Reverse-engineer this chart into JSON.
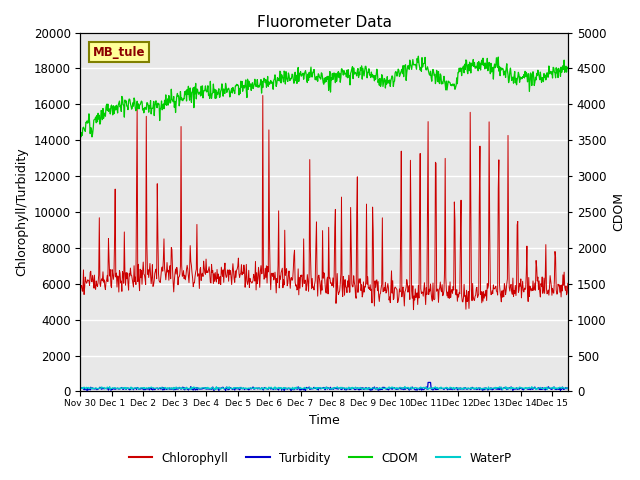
{
  "title": "Fluorometer Data",
  "xlabel": "Time",
  "ylabel_left": "Chlorophyll/Turbidity",
  "ylabel_right": "CDOM",
  "xlim_days": [
    0,
    15.5
  ],
  "ylim_left": [
    0,
    20000
  ],
  "ylim_right": [
    0,
    5000
  ],
  "xtick_labels": [
    "Nov 30",
    "Dec 1",
    "Dec 2",
    "Dec 3",
    "Dec 4",
    "Dec 5",
    "Dec 6",
    "Dec 7",
    "Dec 8",
    "Dec 9",
    "Dec 10",
    "Dec 11",
    "Dec 12",
    "Dec 13",
    "Dec 14",
    "Dec 15"
  ],
  "xtick_positions": [
    0,
    1,
    2,
    3,
    4,
    5,
    6,
    7,
    8,
    9,
    10,
    11,
    12,
    13,
    14,
    15
  ],
  "annotation_text": "MB_tule",
  "bg_color": "#e8e8e8",
  "grid_color": "#ffffff",
  "chlorophyll_color": "#cc0000",
  "turbidity_color": "#0000cc",
  "cdom_color": "#00cc00",
  "waterp_color": "#00cccc",
  "legend_colors": [
    "#cc0000",
    "#0000cc",
    "#00cc00",
    "#00cccc"
  ],
  "legend_labels": [
    "Chlorophyll",
    "Turbidity",
    "CDOM",
    "WaterP"
  ],
  "cdom_scale": 4.0,
  "n_points": 800
}
